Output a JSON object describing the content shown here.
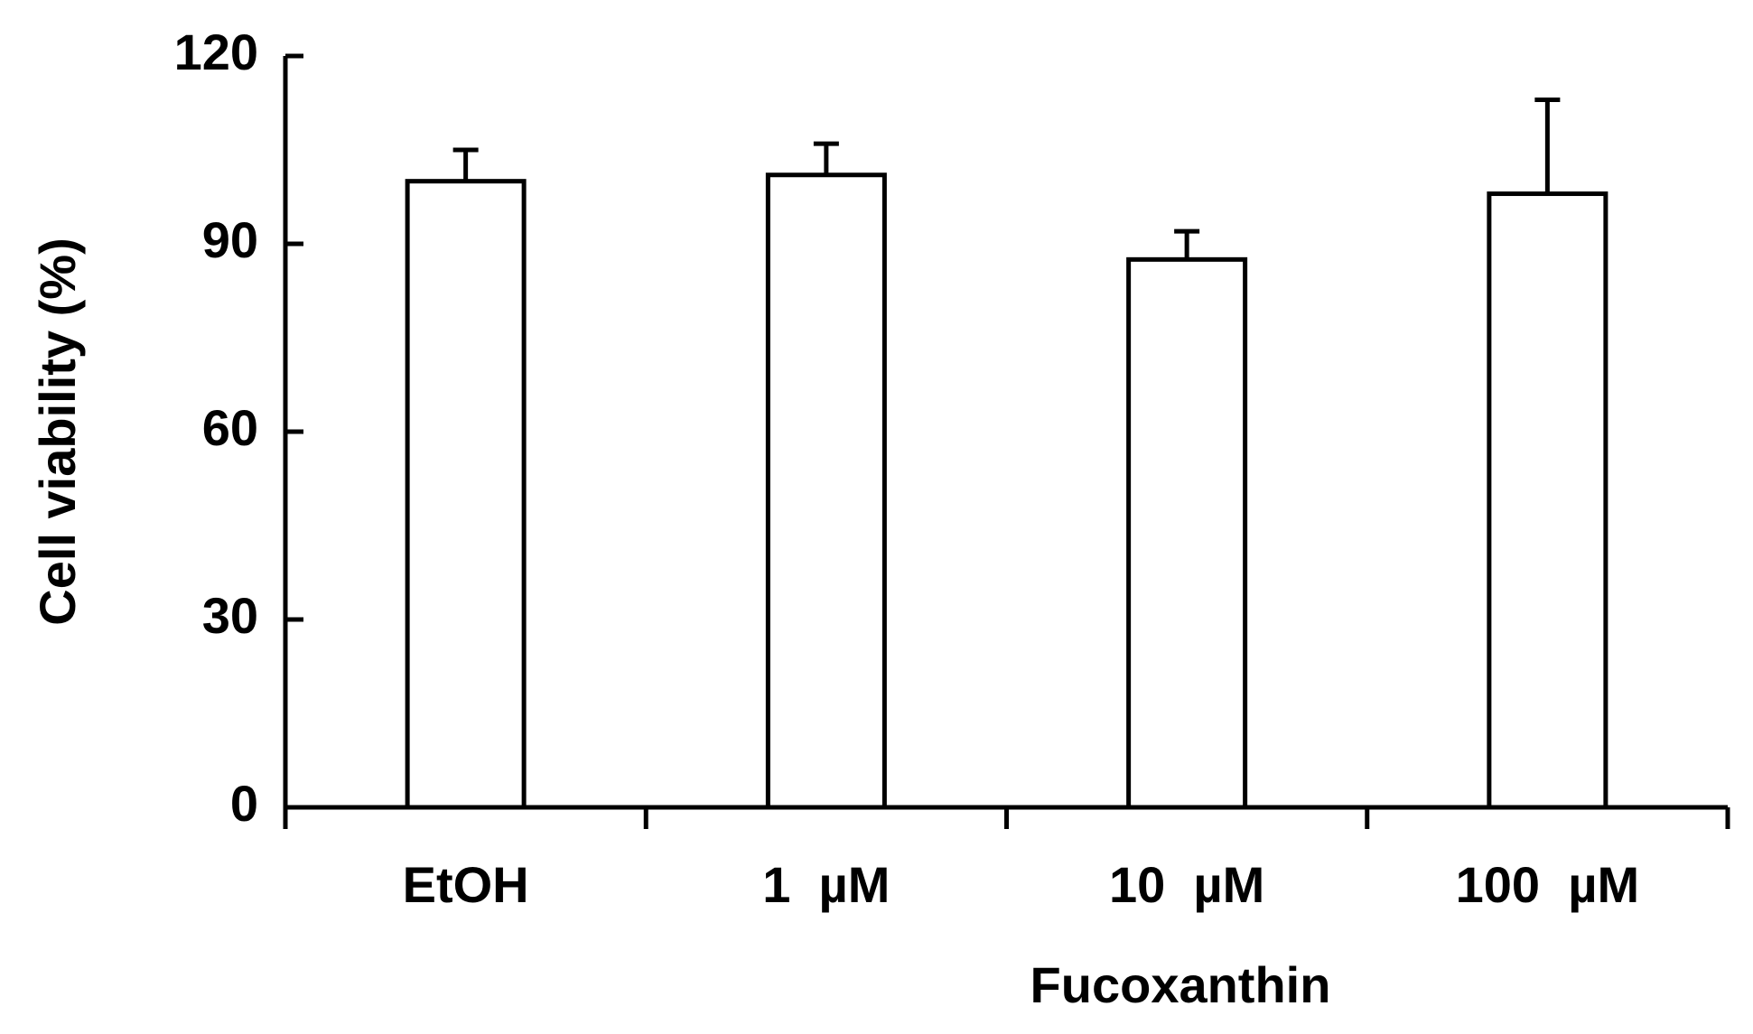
{
  "chart_data": {
    "type": "bar",
    "categories": [
      "EtOH",
      "1  µM",
      "10  µM",
      "100  µM"
    ],
    "values": [
      100,
      101,
      87.5,
      98
    ],
    "errors": [
      5,
      5,
      4.5,
      15
    ],
    "color": "#ffffff",
    "edge_color": "#000000",
    "xlabel": "Fucoxanthin",
    "ylabel": "Cell viability (%)",
    "ylim": [
      0,
      120
    ],
    "yticks": [
      0,
      30,
      60,
      90,
      120
    ],
    "grid": false
  }
}
